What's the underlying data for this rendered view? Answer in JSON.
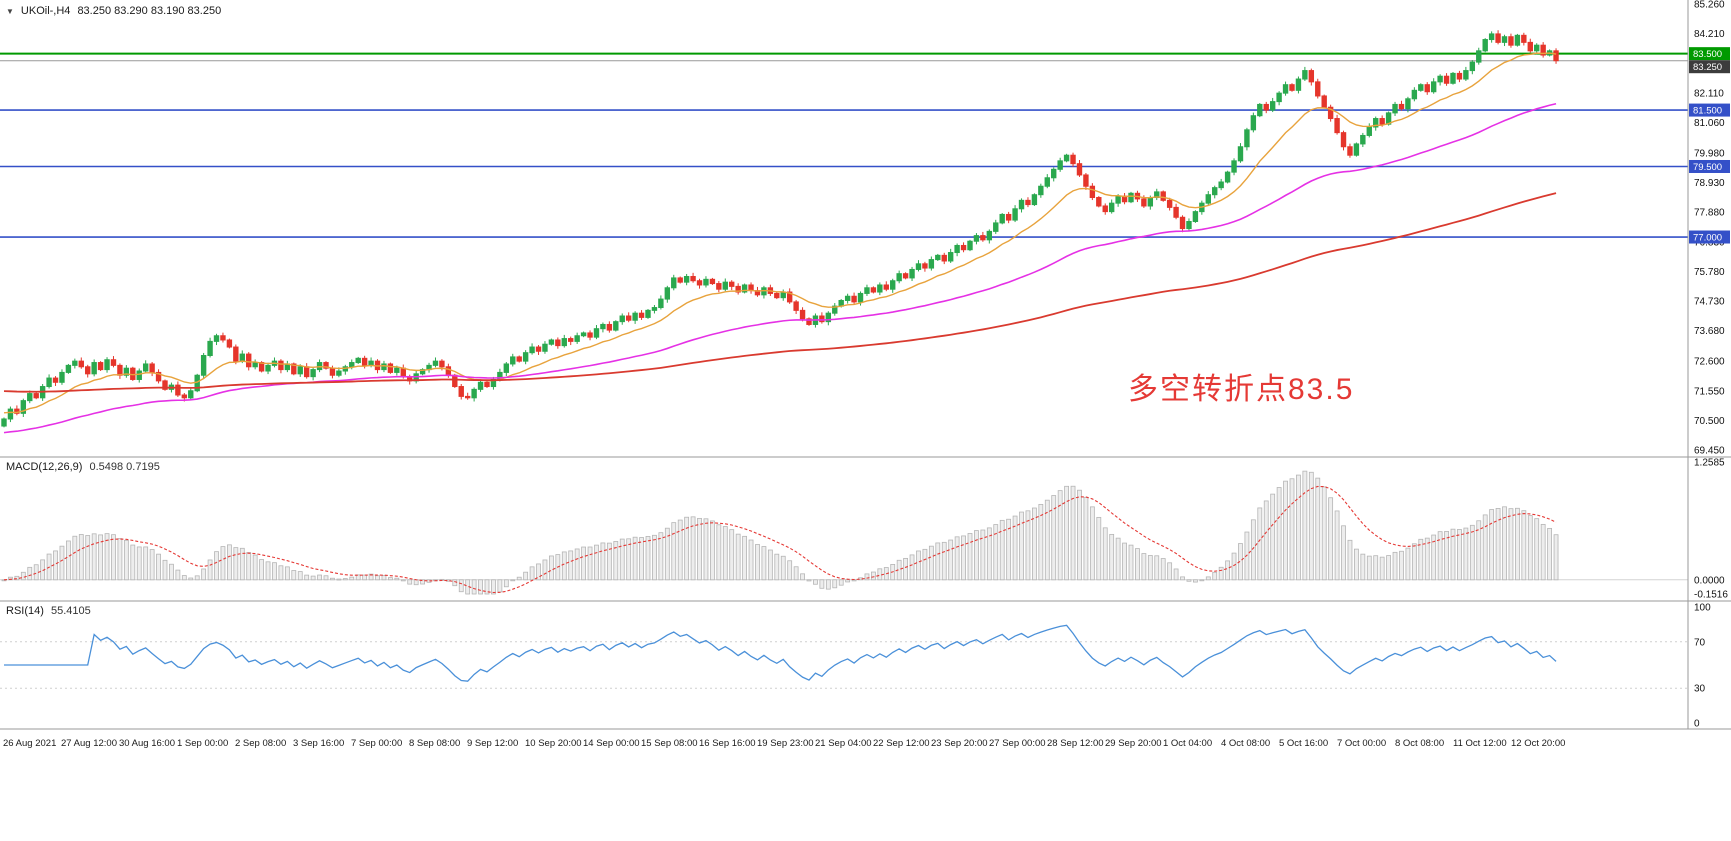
{
  "header": {
    "collapse_icon": "▼",
    "symbol": "UKOil-,H4",
    "ohlc": "83.250 83.290 83.190 83.250"
  },
  "chart_data": [
    {
      "type": "candlestick",
      "symbol": "UKOil-",
      "timeframe": "H4",
      "y_range": [
        69.45,
        85.26
      ],
      "axis_labels": [
        "85.260",
        "84.210",
        "82.110",
        "81.060",
        "79.980",
        "78.930",
        "77.880",
        "76.830",
        "75.780",
        "74.730",
        "73.680",
        "72.600",
        "71.550",
        "70.500",
        "69.450"
      ],
      "up_color": "#2aa84e",
      "down_color": "#e5352b",
      "first_open": 70.3,
      "closes": [
        70.55,
        70.9,
        70.75,
        71.2,
        71.45,
        71.3,
        71.7,
        72.0,
        71.85,
        72.2,
        72.45,
        72.6,
        72.4,
        72.15,
        72.55,
        72.3,
        72.65,
        72.45,
        72.1,
        72.35,
        71.95,
        72.25,
        72.5,
        72.2,
        71.9,
        71.6,
        71.75,
        71.4,
        71.3,
        71.55,
        72.1,
        72.8,
        73.3,
        73.5,
        73.35,
        73.1,
        72.6,
        72.85,
        72.4,
        72.55,
        72.25,
        72.45,
        72.6,
        72.3,
        72.5,
        72.15,
        72.4,
        72.05,
        72.3,
        72.55,
        72.35,
        72.1,
        72.25,
        72.4,
        72.55,
        72.7,
        72.45,
        72.6,
        72.3,
        72.5,
        72.2,
        72.35,
        72.05,
        71.9,
        72.15,
        72.3,
        72.45,
        72.6,
        72.4,
        72.1,
        71.7,
        71.35,
        71.3,
        71.6,
        71.85,
        71.7,
        71.95,
        72.2,
        72.5,
        72.75,
        72.6,
        72.9,
        73.1,
        72.95,
        73.2,
        73.35,
        73.15,
        73.4,
        73.3,
        73.5,
        73.6,
        73.45,
        73.75,
        73.9,
        73.7,
        74.0,
        74.2,
        74.05,
        74.3,
        74.15,
        74.4,
        74.5,
        74.8,
        75.2,
        75.55,
        75.4,
        75.6,
        75.45,
        75.3,
        75.5,
        75.35,
        75.15,
        75.4,
        75.25,
        75.05,
        75.3,
        75.1,
        74.95,
        75.2,
        75.0,
        74.85,
        75.05,
        74.7,
        74.4,
        74.1,
        73.9,
        74.2,
        74.0,
        74.3,
        74.55,
        74.75,
        74.9,
        74.7,
        75.0,
        75.2,
        75.05,
        75.3,
        75.15,
        75.45,
        75.7,
        75.55,
        75.85,
        76.05,
        75.9,
        76.2,
        76.35,
        76.15,
        76.45,
        76.7,
        76.55,
        76.85,
        77.05,
        76.9,
        77.2,
        77.5,
        77.8,
        77.6,
        78.0,
        78.3,
        78.15,
        78.5,
        78.8,
        79.1,
        79.4,
        79.7,
        79.9,
        79.6,
        79.2,
        78.8,
        78.4,
        78.1,
        77.9,
        78.2,
        78.45,
        78.25,
        78.55,
        78.35,
        78.1,
        78.4,
        78.6,
        78.3,
        78.05,
        77.7,
        77.3,
        77.55,
        77.9,
        78.2,
        78.5,
        78.75,
        78.95,
        79.3,
        79.7,
        80.2,
        80.8,
        81.3,
        81.7,
        81.5,
        81.8,
        82.1,
        82.4,
        82.2,
        82.6,
        82.9,
        82.5,
        82.0,
        81.6,
        81.2,
        80.7,
        80.2,
        79.9,
        80.3,
        80.6,
        80.9,
        81.2,
        81.0,
        81.4,
        81.7,
        81.55,
        81.9,
        82.2,
        82.4,
        82.15,
        82.5,
        82.7,
        82.45,
        82.8,
        82.6,
        82.9,
        83.2,
        83.6,
        84.0,
        84.2,
        83.9,
        84.1,
        83.8,
        84.15,
        83.9,
        83.6,
        83.8,
        83.45,
        83.6,
        83.25
      ],
      "hlines": [
        {
          "price": 83.5,
          "label": "83.500",
          "color": "#009a00",
          "width": 2
        },
        {
          "price": 81.5,
          "label": "81.500",
          "color": "#3450c8",
          "width": 1.6
        },
        {
          "price": 79.5,
          "label": "79.500",
          "color": "#3450c8",
          "width": 1.6
        },
        {
          "price": 77.0,
          "label": "77.000",
          "color": "#3450c8",
          "width": 1.6
        }
      ],
      "current_price": {
        "value": 83.25,
        "label": "83.250",
        "badge_color": "#3c3c3c",
        "line_color": "#999999"
      },
      "moving_averages": [
        {
          "name": "ma-fast",
          "period": 14,
          "seed": 70.8,
          "color": "#e8a33d",
          "width": 1.4
        },
        {
          "name": "ma-medium",
          "period": 60,
          "seed": 70.05,
          "color": "#e531e5",
          "width": 1.6
        },
        {
          "name": "ma-slow",
          "period": 170,
          "seed": 71.55,
          "color": "#d93a2f",
          "width": 1.8
        }
      ],
      "annotation": {
        "text": "多空转折点83.5",
        "color": "#e53935"
      }
    },
    {
      "type": "bar",
      "indicator": "MACD",
      "label": "MACD(12,26,9)",
      "values": "0.5498 0.7195",
      "macd_value": "0.5498",
      "signal_value": "0.7195",
      "params": [
        12,
        26,
        9
      ],
      "y_range": [
        -0.1516,
        1.2585
      ],
      "axis_labels": [
        "1.2585",
        "0.0000",
        "-0.1516"
      ],
      "histogram_color": "#ededed",
      "histogram_stroke": "#b5b5b5",
      "signal_color": "#e53935"
    },
    {
      "type": "line",
      "indicator": "RSI",
      "label": "RSI(14)",
      "value": "55.4105",
      "period": 14,
      "y_range": [
        0,
        100
      ],
      "levels": [
        70,
        30
      ],
      "axis_labels": [
        "100",
        "70",
        "30",
        "0"
      ],
      "line_color": "#4a90d9"
    }
  ],
  "time_axis": {
    "labels": [
      "26 Aug 2021",
      "27 Aug 12:00",
      "30 Aug 16:00",
      "1 Sep 00:00",
      "2 Sep 08:00",
      "3 Sep 16:00",
      "7 Sep 00:00",
      "8 Sep 08:00",
      "9 Sep 12:00",
      "10 Sep 20:00",
      "14 Sep 00:00",
      "15 Sep 08:00",
      "16 Sep 16:00",
      "19 Sep 23:00",
      "21 Sep 04:00",
      "22 Sep 12:00",
      "23 Sep 20:00",
      "27 Sep 00:00",
      "28 Sep 12:00",
      "29 Sep 20:00",
      "1 Oct 04:00",
      "4 Oct 08:00",
      "5 Oct 16:00",
      "7 Oct 00:00",
      "8 Oct 08:00",
      "11 Oct 12:00",
      "12 Oct 20:00"
    ]
  }
}
